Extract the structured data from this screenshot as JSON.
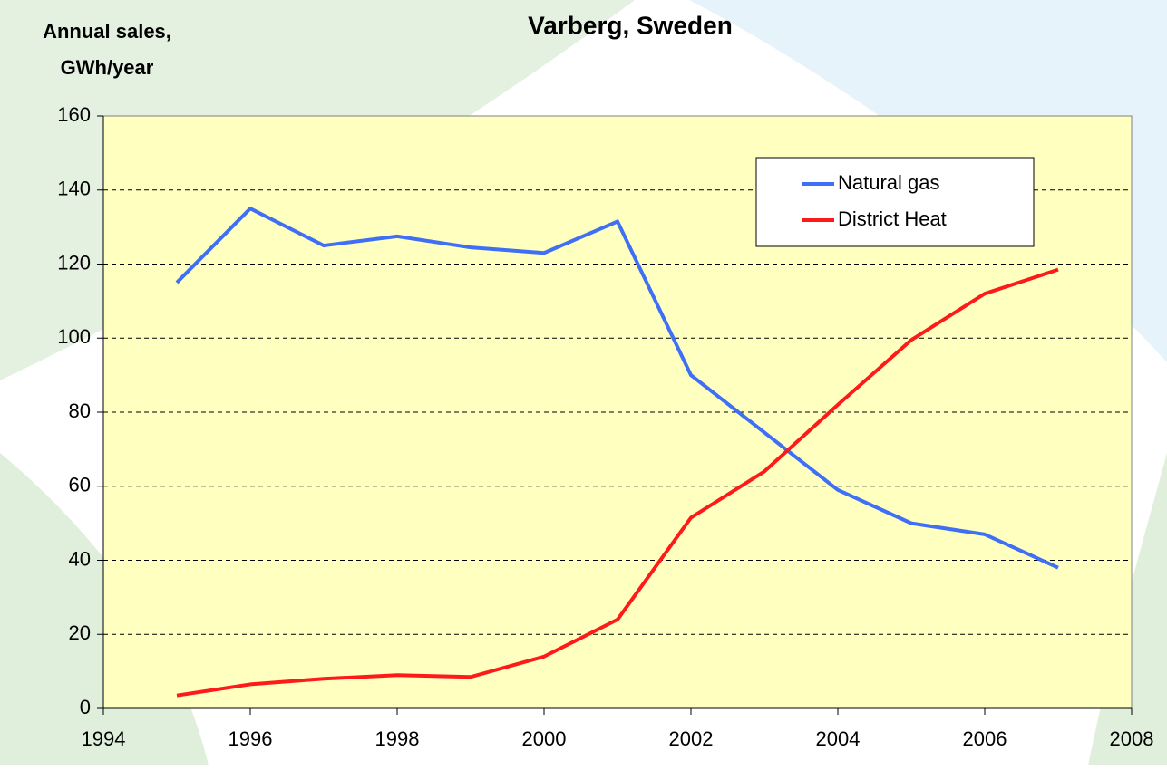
{
  "chart_data": {
    "type": "line",
    "title": "Varberg, Sweden",
    "ylabel": [
      "Annual sales,",
      "GWh/year"
    ],
    "x": [
      1995,
      1996,
      1997,
      1998,
      1999,
      2000,
      2001,
      2002,
      2003,
      2004,
      2005,
      2006,
      2007
    ],
    "series": [
      {
        "name": "Natural gas",
        "color": "#3f6ff5",
        "values": [
          115,
          135,
          125,
          127.5,
          124.5,
          123,
          131.5,
          90,
          74.5,
          59,
          50,
          47,
          38
        ]
      },
      {
        "name": "District Heat",
        "color": "#ff1a1a",
        "values": [
          3.5,
          6.5,
          8,
          9,
          8.5,
          14,
          24,
          51.5,
          64,
          82,
          99.5,
          112,
          118.5
        ]
      }
    ],
    "xlim": [
      1994,
      2008
    ],
    "xticks": [
      1994,
      1996,
      1998,
      2000,
      2002,
      2004,
      2006,
      2008
    ],
    "ylim": [
      0,
      160
    ],
    "yticks": [
      0,
      20,
      40,
      60,
      80,
      100,
      120,
      140,
      160
    ],
    "grid": true,
    "legend": "upper right"
  }
}
